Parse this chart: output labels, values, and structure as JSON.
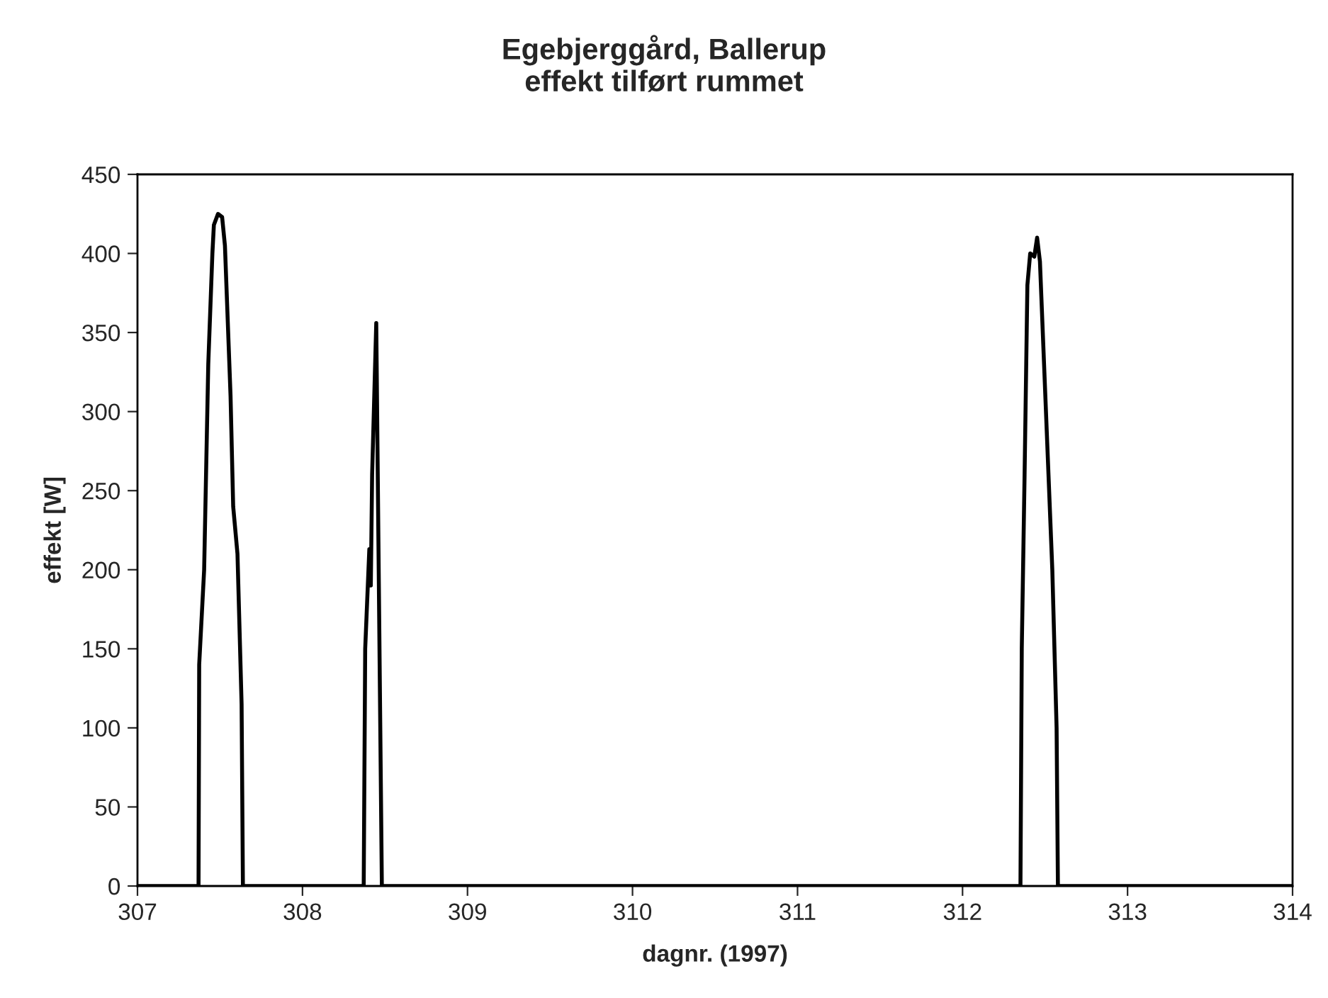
{
  "chart_data": {
    "type": "line",
    "title": "Egebjerggård, Ballerup\neffekt tilført rummet",
    "xlabel": "dagnr. (1997)",
    "ylabel": "effekt [W]",
    "x": [
      307,
      307.37,
      307.374,
      307.404,
      307.429,
      307.454,
      307.463,
      307.488,
      307.513,
      307.53,
      307.564,
      307.58,
      307.606,
      307.631,
      307.639,
      308.371,
      308.38,
      308.405,
      308.414,
      308.422,
      308.447,
      308.481,
      312.351,
      312.359,
      312.376,
      312.393,
      312.41,
      312.435,
      312.452,
      312.469,
      312.494,
      312.544,
      312.57,
      312.578,
      314
    ],
    "series": [
      {
        "color": "#000000",
        "values": [
          0,
          0,
          140,
          200,
          330,
          400,
          418,
          425,
          423,
          405,
          310,
          240,
          210,
          115,
          0,
          0,
          150,
          213,
          190,
          260,
          356,
          0,
          0,
          150,
          260,
          380,
          400,
          398,
          410,
          395,
          330,
          200,
          100,
          0,
          0
        ]
      }
    ],
    "xlim": [
      307,
      314
    ],
    "xticks": [
      307,
      308,
      309,
      310,
      311,
      312,
      313,
      314
    ],
    "ylim": [
      0,
      450
    ],
    "yticks": [
      0,
      50,
      100,
      150,
      200,
      250,
      300,
      350,
      400,
      450
    ],
    "grid": false,
    "marker": "none",
    "line_style": "solid"
  }
}
